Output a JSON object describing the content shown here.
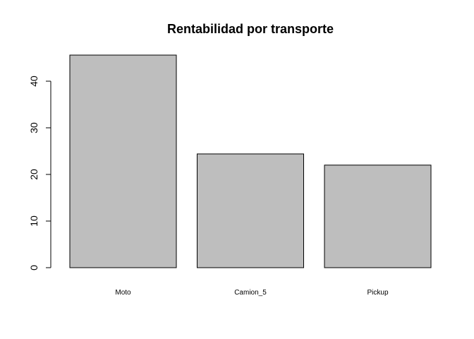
{
  "chart_data": {
    "type": "bar",
    "title": "Rentabilidad por transporte",
    "xlabel": "",
    "ylabel": "",
    "categories": [
      "Moto",
      "Camion_5",
      "Pickup"
    ],
    "values": [
      45.6,
      24.4,
      22.0
    ],
    "ylim": [
      0,
      45.6
    ],
    "yticks": [
      "0",
      "10",
      "20",
      "30",
      "40"
    ],
    "bar_fill": "#bebebe",
    "bar_stroke": "#000000",
    "grid": false,
    "legend": "none"
  }
}
